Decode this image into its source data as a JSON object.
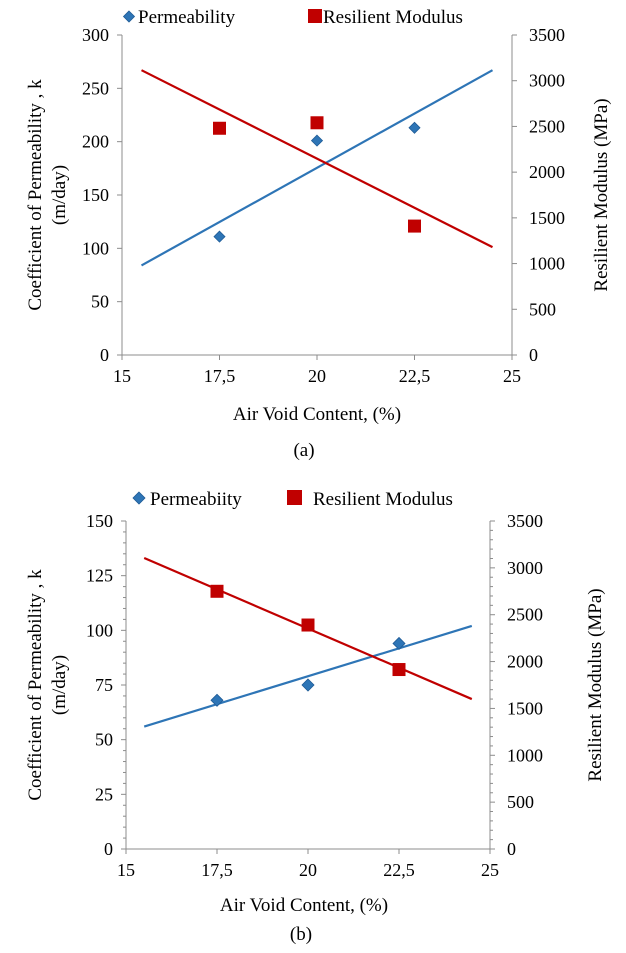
{
  "colors": {
    "permeability": "#2E75B6",
    "resilient": "#C00000",
    "axis": "#8C8C8C"
  },
  "chart_data": [
    {
      "type": "scatter",
      "panel_label": "(a)",
      "xlabel": "Air Void Content, (%)",
      "ylabel_line1": "Coefficient of Permeability , k",
      "ylabel_line2": "(m/day)",
      "y2label": "Resilient Modulus (MPa)",
      "xlim": [
        15,
        25
      ],
      "ylim": [
        0,
        300
      ],
      "y2lim": [
        0,
        3500
      ],
      "x_ticks": [
        "15",
        "17,5",
        "20",
        "22,5",
        "25"
      ],
      "y_ticks": [
        "0",
        "50",
        "100",
        "150",
        "200",
        "250",
        "300"
      ],
      "y2_ticks": [
        "0",
        "500",
        "1000",
        "1500",
        "2000",
        "2500",
        "3000",
        "3500"
      ],
      "legend": [
        "Permeability",
        "Resilient Modulus"
      ],
      "series": [
        {
          "name": "Permeability",
          "axis": "left",
          "marker": "diamond",
          "x": [
            17.5,
            20,
            22.5
          ],
          "values": [
            111,
            201,
            213
          ],
          "trendline": {
            "x": [
              15.5,
              24.5
            ],
            "y": [
              84,
              267
            ]
          }
        },
        {
          "name": "Resilient Modulus",
          "axis": "right",
          "marker": "square",
          "x": [
            17.5,
            20,
            22.5
          ],
          "values": [
            2480,
            2540,
            1410
          ],
          "trendline": {
            "x": [
              15.5,
              24.5
            ],
            "y": [
              3115,
              1180
            ]
          }
        }
      ]
    },
    {
      "type": "scatter",
      "panel_label": "(b)",
      "xlabel": "Air Void Content, (%)",
      "ylabel_line1": "Coefficient of Permeability , k",
      "ylabel_line2": "(m/day)",
      "y2label": "Resilient Modulus (MPa)",
      "xlim": [
        15,
        25
      ],
      "ylim": [
        0,
        150
      ],
      "y2lim": [
        0,
        3500
      ],
      "x_ticks": [
        "15",
        "17,5",
        "20",
        "22,5",
        "25"
      ],
      "y_ticks": [
        "0",
        "25",
        "50",
        "75",
        "100",
        "125",
        "150"
      ],
      "y2_ticks": [
        "0",
        "500",
        "1000",
        "1500",
        "2000",
        "2500",
        "3000",
        "3500"
      ],
      "legend": [
        "Permeabiity",
        "Resilient Modulus"
      ],
      "series": [
        {
          "name": "Permeabiity",
          "axis": "left",
          "marker": "diamond",
          "x": [
            17.5,
            20,
            22.5
          ],
          "values": [
            68,
            75,
            94
          ],
          "trendline": {
            "x": [
              15.5,
              24.5
            ],
            "y": [
              56,
              102
            ]
          }
        },
        {
          "name": "Resilient Modulus",
          "axis": "right",
          "marker": "square",
          "x": [
            17.5,
            20,
            22.5
          ],
          "values": [
            2750,
            2390,
            1915
          ],
          "trendline": {
            "x": [
              15.5,
              24.5
            ],
            "y": [
              3105,
              1600
            ]
          }
        }
      ]
    }
  ]
}
